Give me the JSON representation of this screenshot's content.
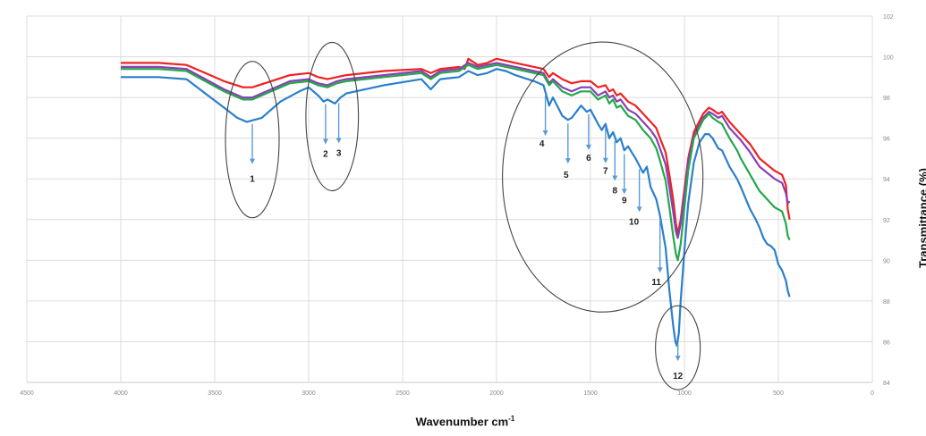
{
  "chart_data": {
    "type": "line",
    "xlabel": "Wavenumber cm",
    "xlabel_superscript": "-1",
    "ylabel": "Transmittance (%)",
    "xlim": [
      4500,
      0
    ],
    "ylim": [
      84,
      102
    ],
    "x_ticks": [
      4500,
      4000,
      3500,
      3000,
      2500,
      2000,
      1500,
      1000,
      500,
      0
    ],
    "y_ticks": [
      84,
      86,
      88,
      90,
      92,
      94,
      96,
      98,
      100,
      102
    ],
    "grid": true,
    "series": [
      {
        "color": "#ee2222",
        "points": [
          [
            4000,
            99.7
          ],
          [
            3800,
            99.7
          ],
          [
            3650,
            99.6
          ],
          [
            3550,
            99.2
          ],
          [
            3450,
            98.8
          ],
          [
            3350,
            98.5
          ],
          [
            3300,
            98.5
          ],
          [
            3200,
            98.8
          ],
          [
            3100,
            99.1
          ],
          [
            3000,
            99.2
          ],
          [
            2950,
            99.0
          ],
          [
            2900,
            98.9
          ],
          [
            2850,
            99.0
          ],
          [
            2800,
            99.1
          ],
          [
            2600,
            99.3
          ],
          [
            2400,
            99.4
          ],
          [
            2350,
            99.2
          ],
          [
            2300,
            99.4
          ],
          [
            2200,
            99.5
          ],
          [
            2170,
            99.4
          ],
          [
            2150,
            99.9
          ],
          [
            2100,
            99.6
          ],
          [
            2050,
            99.7
          ],
          [
            2000,
            99.9
          ],
          [
            1950,
            99.8
          ],
          [
            1900,
            99.7
          ],
          [
            1800,
            99.5
          ],
          [
            1750,
            99.4
          ],
          [
            1720,
            99.0
          ],
          [
            1700,
            99.2
          ],
          [
            1650,
            98.9
          ],
          [
            1600,
            98.7
          ],
          [
            1550,
            98.8
          ],
          [
            1500,
            98.8
          ],
          [
            1460,
            98.5
          ],
          [
            1420,
            98.6
          ],
          [
            1400,
            98.3
          ],
          [
            1380,
            98.4
          ],
          [
            1360,
            98.1
          ],
          [
            1340,
            98.2
          ],
          [
            1300,
            97.8
          ],
          [
            1260,
            97.6
          ],
          [
            1220,
            97.2
          ],
          [
            1180,
            96.8
          ],
          [
            1150,
            96.5
          ],
          [
            1130,
            96.0
          ],
          [
            1100,
            95.3
          ],
          [
            1080,
            94.2
          ],
          [
            1060,
            93.0
          ],
          [
            1045,
            91.8
          ],
          [
            1035,
            91.3
          ],
          [
            1020,
            92.0
          ],
          [
            1000,
            93.5
          ],
          [
            980,
            95.0
          ],
          [
            950,
            96.3
          ],
          [
            900,
            97.2
          ],
          [
            870,
            97.5
          ],
          [
            850,
            97.4
          ],
          [
            820,
            97.2
          ],
          [
            800,
            97.3
          ],
          [
            760,
            96.8
          ],
          [
            720,
            96.4
          ],
          [
            700,
            96.2
          ],
          [
            650,
            95.7
          ],
          [
            600,
            95.0
          ],
          [
            560,
            94.7
          ],
          [
            520,
            94.4
          ],
          [
            480,
            94.2
          ],
          [
            460,
            93.7
          ],
          [
            450,
            92.5
          ],
          [
            440,
            92.0
          ]
        ]
      },
      {
        "color": "#8a3fb5",
        "points": [
          [
            4000,
            99.5
          ],
          [
            3800,
            99.5
          ],
          [
            3650,
            99.4
          ],
          [
            3550,
            98.9
          ],
          [
            3450,
            98.4
          ],
          [
            3350,
            98.0
          ],
          [
            3300,
            98.0
          ],
          [
            3200,
            98.4
          ],
          [
            3100,
            98.8
          ],
          [
            3000,
            98.9
          ],
          [
            2950,
            98.7
          ],
          [
            2900,
            98.6
          ],
          [
            2850,
            98.8
          ],
          [
            2800,
            98.9
          ],
          [
            2600,
            99.1
          ],
          [
            2400,
            99.3
          ],
          [
            2350,
            99.0
          ],
          [
            2300,
            99.3
          ],
          [
            2200,
            99.4
          ],
          [
            2150,
            99.7
          ],
          [
            2100,
            99.5
          ],
          [
            2050,
            99.6
          ],
          [
            2000,
            99.7
          ],
          [
            1950,
            99.6
          ],
          [
            1900,
            99.5
          ],
          [
            1800,
            99.3
          ],
          [
            1750,
            99.2
          ],
          [
            1720,
            98.7
          ],
          [
            1700,
            98.9
          ],
          [
            1650,
            98.5
          ],
          [
            1600,
            98.3
          ],
          [
            1550,
            98.5
          ],
          [
            1500,
            98.5
          ],
          [
            1460,
            98.1
          ],
          [
            1420,
            98.3
          ],
          [
            1400,
            98.0
          ],
          [
            1380,
            98.1
          ],
          [
            1360,
            97.8
          ],
          [
            1340,
            97.9
          ],
          [
            1300,
            97.4
          ],
          [
            1260,
            97.2
          ],
          [
            1220,
            96.8
          ],
          [
            1180,
            96.4
          ],
          [
            1150,
            96.0
          ],
          [
            1130,
            95.5
          ],
          [
            1100,
            94.7
          ],
          [
            1080,
            93.6
          ],
          [
            1060,
            92.4
          ],
          [
            1045,
            91.4
          ],
          [
            1035,
            91.1
          ],
          [
            1020,
            91.8
          ],
          [
            1000,
            93.2
          ],
          [
            980,
            94.8
          ],
          [
            950,
            96.1
          ],
          [
            900,
            97.0
          ],
          [
            870,
            97.3
          ],
          [
            850,
            97.2
          ],
          [
            820,
            97.0
          ],
          [
            800,
            97.1
          ],
          [
            760,
            96.5
          ],
          [
            720,
            96.1
          ],
          [
            700,
            95.9
          ],
          [
            650,
            95.3
          ],
          [
            600,
            94.6
          ],
          [
            560,
            94.3
          ],
          [
            520,
            94.0
          ],
          [
            480,
            93.8
          ],
          [
            460,
            93.3
          ],
          [
            450,
            92.8
          ],
          [
            440,
            92.9
          ]
        ]
      },
      {
        "color": "#22a84a",
        "points": [
          [
            4000,
            99.4
          ],
          [
            3800,
            99.4
          ],
          [
            3650,
            99.3
          ],
          [
            3550,
            98.8
          ],
          [
            3450,
            98.3
          ],
          [
            3350,
            97.9
          ],
          [
            3300,
            97.9
          ],
          [
            3200,
            98.3
          ],
          [
            3100,
            98.7
          ],
          [
            3000,
            98.8
          ],
          [
            2950,
            98.6
          ],
          [
            2900,
            98.5
          ],
          [
            2850,
            98.7
          ],
          [
            2800,
            98.8
          ],
          [
            2600,
            99.0
          ],
          [
            2400,
            99.2
          ],
          [
            2350,
            98.9
          ],
          [
            2300,
            99.2
          ],
          [
            2200,
            99.3
          ],
          [
            2150,
            99.6
          ],
          [
            2100,
            99.4
          ],
          [
            2050,
            99.5
          ],
          [
            2000,
            99.6
          ],
          [
            1950,
            99.5
          ],
          [
            1900,
            99.4
          ],
          [
            1800,
            99.2
          ],
          [
            1750,
            99.1
          ],
          [
            1720,
            98.6
          ],
          [
            1700,
            98.8
          ],
          [
            1650,
            98.3
          ],
          [
            1600,
            98.1
          ],
          [
            1550,
            98.3
          ],
          [
            1500,
            98.3
          ],
          [
            1460,
            97.9
          ],
          [
            1420,
            98.1
          ],
          [
            1400,
            97.7
          ],
          [
            1380,
            97.9
          ],
          [
            1360,
            97.5
          ],
          [
            1340,
            97.6
          ],
          [
            1300,
            97.1
          ],
          [
            1260,
            96.9
          ],
          [
            1220,
            96.4
          ],
          [
            1180,
            96.0
          ],
          [
            1150,
            95.5
          ],
          [
            1130,
            94.9
          ],
          [
            1100,
            93.9
          ],
          [
            1080,
            92.6
          ],
          [
            1060,
            91.2
          ],
          [
            1045,
            90.3
          ],
          [
            1035,
            90.0
          ],
          [
            1020,
            90.8
          ],
          [
            1000,
            92.6
          ],
          [
            980,
            94.4
          ],
          [
            950,
            96.0
          ],
          [
            900,
            96.9
          ],
          [
            870,
            97.2
          ],
          [
            850,
            97.0
          ],
          [
            820,
            96.8
          ],
          [
            800,
            96.7
          ],
          [
            760,
            96.0
          ],
          [
            720,
            95.4
          ],
          [
            700,
            95.0
          ],
          [
            650,
            94.2
          ],
          [
            600,
            93.4
          ],
          [
            560,
            93.0
          ],
          [
            520,
            92.6
          ],
          [
            480,
            92.4
          ],
          [
            460,
            91.8
          ],
          [
            450,
            91.2
          ],
          [
            440,
            91.0
          ]
        ]
      },
      {
        "color": "#2b7fcb",
        "points": [
          [
            4000,
            99.0
          ],
          [
            3800,
            99.0
          ],
          [
            3650,
            98.9
          ],
          [
            3550,
            98.2
          ],
          [
            3450,
            97.5
          ],
          [
            3380,
            97.0
          ],
          [
            3330,
            96.8
          ],
          [
            3250,
            97.0
          ],
          [
            3150,
            97.8
          ],
          [
            3050,
            98.3
          ],
          [
            3000,
            98.5
          ],
          [
            2950,
            98.1
          ],
          [
            2920,
            97.8
          ],
          [
            2900,
            97.9
          ],
          [
            2860,
            97.7
          ],
          [
            2830,
            98.0
          ],
          [
            2800,
            98.2
          ],
          [
            2600,
            98.6
          ],
          [
            2400,
            98.9
          ],
          [
            2350,
            98.4
          ],
          [
            2300,
            98.9
          ],
          [
            2200,
            99.0
          ],
          [
            2150,
            99.3
          ],
          [
            2100,
            99.1
          ],
          [
            2050,
            99.2
          ],
          [
            2000,
            99.4
          ],
          [
            1950,
            99.3
          ],
          [
            1900,
            99.1
          ],
          [
            1800,
            98.8
          ],
          [
            1750,
            98.6
          ],
          [
            1720,
            97.6
          ],
          [
            1700,
            98.0
          ],
          [
            1650,
            97.1
          ],
          [
            1620,
            96.9
          ],
          [
            1600,
            97.0
          ],
          [
            1550,
            97.6
          ],
          [
            1520,
            97.3
          ],
          [
            1500,
            97.4
          ],
          [
            1460,
            96.7
          ],
          [
            1440,
            96.4
          ],
          [
            1420,
            96.7
          ],
          [
            1400,
            96.0
          ],
          [
            1380,
            96.3
          ],
          [
            1360,
            95.8
          ],
          [
            1340,
            96.0
          ],
          [
            1320,
            95.4
          ],
          [
            1300,
            95.6
          ],
          [
            1260,
            95.0
          ],
          [
            1220,
            94.3
          ],
          [
            1200,
            94.6
          ],
          [
            1180,
            93.6
          ],
          [
            1150,
            93.0
          ],
          [
            1130,
            92.2
          ],
          [
            1100,
            90.6
          ],
          [
            1080,
            88.5
          ],
          [
            1060,
            86.8
          ],
          [
            1048,
            86.0
          ],
          [
            1040,
            85.8
          ],
          [
            1030,
            86.4
          ],
          [
            1020,
            88.0
          ],
          [
            1000,
            90.5
          ],
          [
            980,
            92.8
          ],
          [
            950,
            94.8
          ],
          [
            920,
            95.8
          ],
          [
            890,
            96.2
          ],
          [
            870,
            96.2
          ],
          [
            850,
            96.0
          ],
          [
            820,
            95.5
          ],
          [
            800,
            95.4
          ],
          [
            760,
            94.6
          ],
          [
            720,
            94.0
          ],
          [
            700,
            93.6
          ],
          [
            650,
            92.5
          ],
          [
            620,
            92.0
          ],
          [
            600,
            91.6
          ],
          [
            580,
            91.1
          ],
          [
            560,
            90.8
          ],
          [
            540,
            90.7
          ],
          [
            520,
            90.5
          ],
          [
            500,
            89.8
          ],
          [
            480,
            89.5
          ],
          [
            460,
            89.0
          ],
          [
            450,
            88.5
          ],
          [
            440,
            88.2
          ]
        ]
      }
    ],
    "annotations": [
      {
        "label": "1",
        "x": 3300
      },
      {
        "label": "2",
        "x": 2910
      },
      {
        "label": "3",
        "x": 2840
      },
      {
        "label": "4",
        "x": 1740
      },
      {
        "label": "5",
        "x": 1620
      },
      {
        "label": "6",
        "x": 1510
      },
      {
        "label": "7",
        "x": 1420
      },
      {
        "label": "8",
        "x": 1370
      },
      {
        "label": "9",
        "x": 1320
      },
      {
        "label": "10",
        "x": 1240
      },
      {
        "label": "11",
        "x": 1130
      },
      {
        "label": "12",
        "x": 1035
      }
    ],
    "region_circles": [
      {
        "covers": [
          "1"
        ]
      },
      {
        "covers": [
          "2",
          "3"
        ]
      },
      {
        "covers": [
          "4",
          "5",
          "6",
          "7",
          "8",
          "9",
          "10",
          "11"
        ]
      },
      {
        "covers": [
          "12"
        ]
      }
    ]
  }
}
